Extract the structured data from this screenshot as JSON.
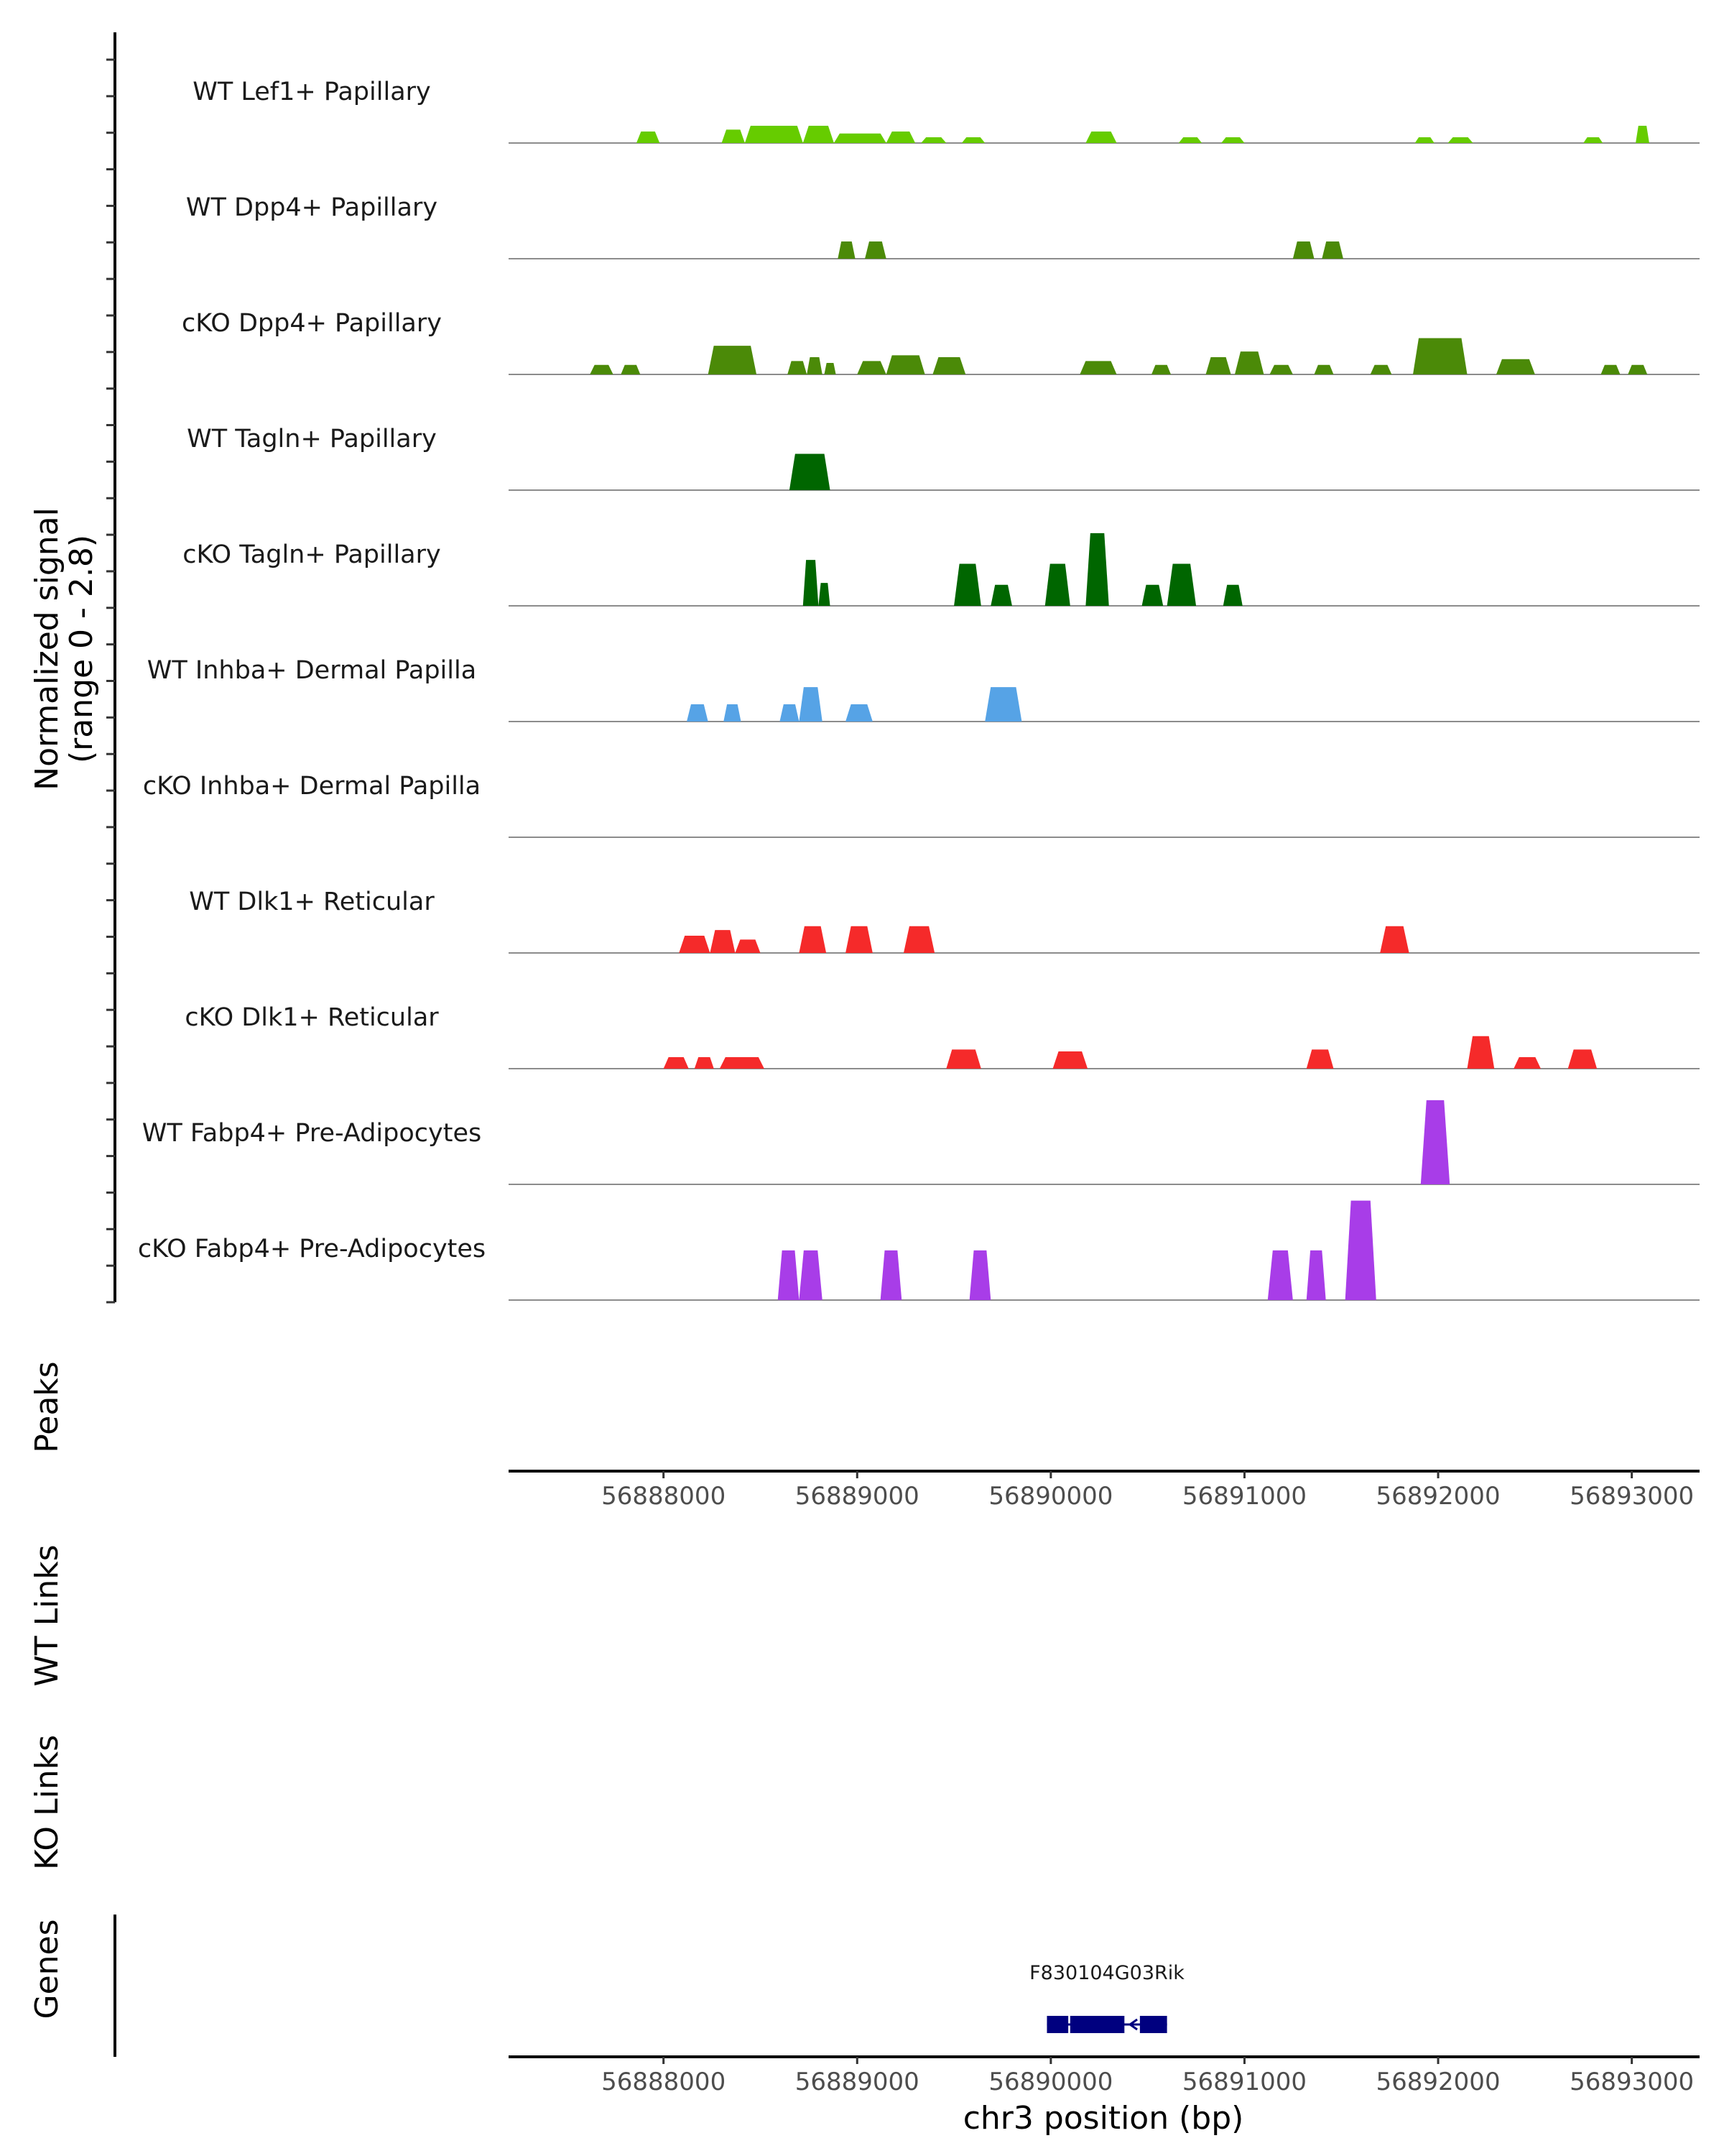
{
  "chart_data": {
    "type": "area",
    "title": "",
    "xlabel": "chr3 position (bp)",
    "xlim": [
      56887200,
      56893350
    ],
    "x_ticks": [
      56888000,
      56889000,
      56890000,
      56891000,
      56892000,
      56893000
    ],
    "x_tick_labels": [
      "56888000",
      "56889000",
      "56890000",
      "56891000",
      "56892000",
      "56893000"
    ],
    "ylabel": "Normalized signal",
    "ylabel_range": "(range 0 - 2.8)",
    "ylim": [
      0,
      2.8
    ],
    "series": [
      {
        "name": "WT Lef1+ Papillary",
        "color": "#66CC00",
        "peaks": [
          [
            56887860,
            56887980,
            0.3
          ],
          [
            56888300,
            56888420,
            0.35
          ],
          [
            56888420,
            56888720,
            0.45
          ],
          [
            56888720,
            56888880,
            0.45
          ],
          [
            56888880,
            56889150,
            0.25
          ],
          [
            56889150,
            56889300,
            0.3
          ],
          [
            56889330,
            56889460,
            0.15
          ],
          [
            56889540,
            56889660,
            0.15
          ],
          [
            56890180,
            56890340,
            0.3
          ],
          [
            56890660,
            56890780,
            0.15
          ],
          [
            56890880,
            56891000,
            0.15
          ],
          [
            56891880,
            56891980,
            0.15
          ],
          [
            56892050,
            56892180,
            0.15
          ],
          [
            56892750,
            56892850,
            0.15
          ],
          [
            56893020,
            56893090,
            0.45
          ]
        ]
      },
      {
        "name": "WT Dpp4+ Papillary",
        "color": "#4B8A08",
        "peaks": [
          [
            56888900,
            56888990,
            0.45
          ],
          [
            56889040,
            56889150,
            0.45
          ],
          [
            56891250,
            56891360,
            0.45
          ],
          [
            56891400,
            56891510,
            0.45
          ]
        ]
      },
      {
        "name": "cKO Dpp4+ Papillary",
        "color": "#4B8A08",
        "peaks": [
          [
            56887620,
            56887740,
            0.25
          ],
          [
            56887780,
            56887880,
            0.25
          ],
          [
            56888230,
            56888480,
            0.75
          ],
          [
            56888640,
            56888740,
            0.35
          ],
          [
            56888740,
            56888820,
            0.45
          ],
          [
            56888830,
            56888890,
            0.3
          ],
          [
            56889000,
            56889150,
            0.35
          ],
          [
            56889150,
            56889350,
            0.5
          ],
          [
            56889390,
            56889560,
            0.45
          ],
          [
            56890150,
            56890340,
            0.35
          ],
          [
            56890520,
            56890620,
            0.25
          ],
          [
            56890800,
            56890930,
            0.45
          ],
          [
            56890950,
            56891100,
            0.6
          ],
          [
            56891130,
            56891250,
            0.25
          ],
          [
            56891360,
            56891460,
            0.25
          ],
          [
            56891650,
            56891760,
            0.25
          ],
          [
            56891870,
            56892150,
            0.95
          ],
          [
            56892300,
            56892500,
            0.4
          ],
          [
            56892840,
            56892940,
            0.25
          ],
          [
            56892980,
            56893080,
            0.25
          ]
        ]
      },
      {
        "name": "WT Tagln+ Papillary",
        "color": "#006600",
        "peaks": [
          [
            56888650,
            56888860,
            0.95
          ]
        ]
      },
      {
        "name": "cKO Tagln+ Papillary",
        "color": "#006600",
        "peaks": [
          [
            56888720,
            56888800,
            1.2
          ],
          [
            56888800,
            56888860,
            0.6
          ],
          [
            56889500,
            56889640,
            1.1
          ],
          [
            56889690,
            56889800,
            0.55
          ],
          [
            56889970,
            56890100,
            1.1
          ],
          [
            56890180,
            56890300,
            1.9
          ],
          [
            56890470,
            56890580,
            0.55
          ],
          [
            56890600,
            56890750,
            1.1
          ],
          [
            56890890,
            56890990,
            0.55
          ]
        ]
      },
      {
        "name": "WT Inhba+ Dermal Papilla",
        "color": "#56A3E6",
        "peaks": [
          [
            56888120,
            56888230,
            0.45
          ],
          [
            56888310,
            56888400,
            0.45
          ],
          [
            56888600,
            56888700,
            0.45
          ],
          [
            56888700,
            56888820,
            0.9
          ],
          [
            56888940,
            56889080,
            0.45
          ],
          [
            56889660,
            56889850,
            0.9
          ]
        ]
      },
      {
        "name": "cKO Inhba+ Dermal Papilla",
        "color": "#56A3E6",
        "peaks": []
      },
      {
        "name": "WT Dlk1+ Reticular",
        "color": "#F52A2A",
        "peaks": [
          [
            56888080,
            56888240,
            0.45
          ],
          [
            56888240,
            56888370,
            0.6
          ],
          [
            56888370,
            56888500,
            0.35
          ],
          [
            56888700,
            56888840,
            0.7
          ],
          [
            56888940,
            56889080,
            0.7
          ],
          [
            56889240,
            56889400,
            0.7
          ],
          [
            56891700,
            56891850,
            0.7
          ]
        ]
      },
      {
        "name": "cKO Dlk1+ Reticular",
        "color": "#F52A2A",
        "peaks": [
          [
            56888000,
            56888130,
            0.3
          ],
          [
            56888160,
            56888260,
            0.3
          ],
          [
            56888290,
            56888520,
            0.3
          ],
          [
            56889460,
            56889640,
            0.5
          ],
          [
            56890010,
            56890190,
            0.45
          ],
          [
            56891320,
            56891460,
            0.5
          ],
          [
            56892150,
            56892290,
            0.85
          ],
          [
            56892390,
            56892530,
            0.3
          ],
          [
            56892670,
            56892820,
            0.5
          ]
        ]
      },
      {
        "name": "WT Fabp4+ Pre-Adipocytes",
        "color": "#A83DE8",
        "peaks": [
          [
            56891910,
            56892060,
            2.2
          ]
        ]
      },
      {
        "name": "cKO Fabp4+ Pre-Adipocytes",
        "color": "#A83DE8",
        "peaks": [
          [
            56888590,
            56888700,
            1.3
          ],
          [
            56888700,
            56888820,
            1.3
          ],
          [
            56889120,
            56889230,
            1.3
          ],
          [
            56889580,
            56889690,
            1.3
          ],
          [
            56891120,
            56891250,
            1.3
          ],
          [
            56891320,
            56891420,
            1.3
          ],
          [
            56891520,
            56891680,
            2.6
          ]
        ]
      }
    ],
    "gene": {
      "name": "F830104G03Rik",
      "start": 56889980,
      "end": 56890600,
      "strand": "-",
      "exons": [
        [
          56889980,
          56890090
        ],
        [
          56890100,
          56890380
        ],
        [
          56890460,
          56890600
        ]
      ],
      "color": "#00007F"
    }
  },
  "sections": {
    "peaks": "Peaks",
    "wt_links": "WT Links",
    "ko_links": "KO Links",
    "genes": "Genes"
  }
}
